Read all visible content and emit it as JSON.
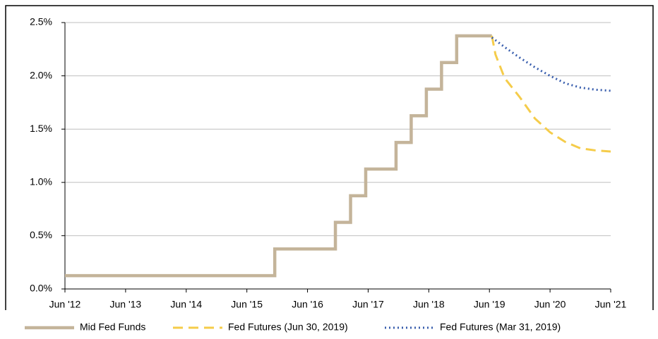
{
  "chart_data": {
    "type": "line",
    "xlim": [
      2012.5,
      2021.5
    ],
    "xticks": [
      {
        "value": 2012.5,
        "label": "Jun '12"
      },
      {
        "value": 2013.5,
        "label": "Jun '13"
      },
      {
        "value": 2014.5,
        "label": "Jun '14"
      },
      {
        "value": 2015.5,
        "label": "Jun '15"
      },
      {
        "value": 2016.5,
        "label": "Jun '16"
      },
      {
        "value": 2017.5,
        "label": "Jun '17"
      },
      {
        "value": 2018.5,
        "label": "Jun '18"
      },
      {
        "value": 2019.5,
        "label": "Jun '19"
      },
      {
        "value": 2020.5,
        "label": "Jun '20"
      },
      {
        "value": 2021.5,
        "label": "Jun '21"
      }
    ],
    "ylim": [
      0,
      2.5
    ],
    "yticks": [
      {
        "value": 0,
        "label": "0.0%"
      },
      {
        "value": 0.5,
        "label": "0.5%"
      },
      {
        "value": 1,
        "label": "1.0%"
      },
      {
        "value": 1.5,
        "label": "1.5%"
      },
      {
        "value": 2,
        "label": "2.0%"
      },
      {
        "value": 2.5,
        "label": "2.5%"
      }
    ],
    "grid": true,
    "legend": "bottom",
    "series": [
      {
        "name": "Mid Fed Funds",
        "color": "#c4b49a",
        "style": "solid",
        "x": [
          2012.5,
          2015.96,
          2015.96,
          2016.96,
          2016.96,
          2017.21,
          2017.21,
          2017.46,
          2017.46,
          2017.96,
          2017.96,
          2018.21,
          2018.21,
          2018.46,
          2018.46,
          2018.71,
          2018.71,
          2018.96,
          2018.96,
          2019.54
        ],
        "values": [
          0.125,
          0.125,
          0.375,
          0.375,
          0.625,
          0.625,
          0.875,
          0.875,
          1.125,
          1.125,
          1.375,
          1.375,
          1.625,
          1.625,
          1.875,
          1.875,
          2.125,
          2.125,
          2.375,
          2.375
        ]
      },
      {
        "name": "Fed Futures (Jun 30, 2019)",
        "color": "#f5cc4a",
        "style": "dashed",
        "x": [
          2019.54,
          2019.6,
          2019.75,
          2020.0,
          2020.25,
          2020.5,
          2020.75,
          2021.0,
          2021.25,
          2021.5
        ],
        "values": [
          2.375,
          2.2,
          1.98,
          1.8,
          1.6,
          1.47,
          1.38,
          1.32,
          1.3,
          1.29
        ]
      },
      {
        "name": "Fed Futures (Mar 31, 2019)",
        "color": "#3a5fae",
        "style": "dotted",
        "x": [
          2019.54,
          2019.75,
          2020.0,
          2020.25,
          2020.5,
          2020.75,
          2021.0,
          2021.25,
          2021.5
        ],
        "values": [
          2.36,
          2.27,
          2.17,
          2.08,
          2.0,
          1.93,
          1.89,
          1.87,
          1.86
        ]
      }
    ]
  }
}
